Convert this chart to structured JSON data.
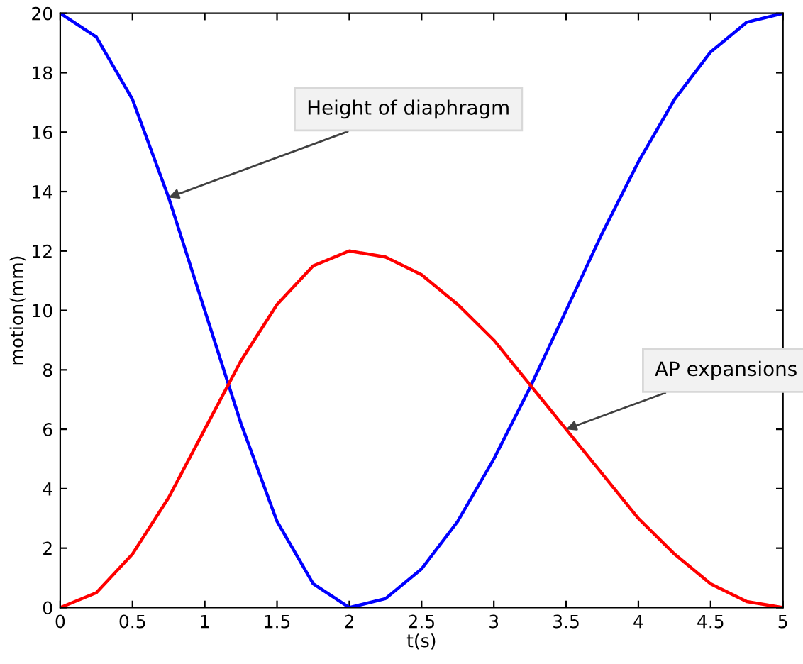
{
  "chart_data": {
    "type": "line",
    "xlabel": "t(s)",
    "ylabel": "motion(mm)",
    "x": [
      0,
      0.25,
      0.5,
      0.75,
      1,
      1.25,
      1.5,
      1.75,
      2,
      2.25,
      2.5,
      2.75,
      3,
      3.25,
      3.5,
      3.75,
      4,
      4.25,
      4.5,
      4.75,
      5
    ],
    "series": [
      {
        "color": "#0000ff",
        "values": [
          20,
          19.2,
          17.1,
          13.8,
          10,
          6.2,
          2.9,
          0.8,
          0,
          0.3,
          1.3,
          2.9,
          5,
          7.4,
          10,
          12.6,
          15,
          17.1,
          18.7,
          19.7,
          20
        ]
      },
      {
        "color": "#ff0000",
        "values": [
          0,
          0.5,
          1.8,
          3.7,
          6,
          8.3,
          10.2,
          11.5,
          12,
          11.8,
          11.2,
          10.2,
          9,
          7.5,
          6,
          4.5,
          3,
          1.8,
          0.8,
          0.2,
          0
        ]
      }
    ],
    "xlim": [
      0,
      5
    ],
    "xticks": [
      0,
      0.5,
      1,
      1.5,
      2,
      2.5,
      3,
      3.5,
      4,
      4.5,
      5
    ],
    "ylim": [
      0,
      20
    ],
    "yticks": [
      0,
      2,
      4,
      6,
      8,
      10,
      12,
      14,
      16,
      18,
      20
    ],
    "annotations": [
      {
        "text": "Height of diaphragm",
        "x": 0.75,
        "y": 13.8
      },
      {
        "text": "AP expansions",
        "x": 3.5,
        "y": 6
      }
    ],
    "grid": false,
    "legend": false
  }
}
